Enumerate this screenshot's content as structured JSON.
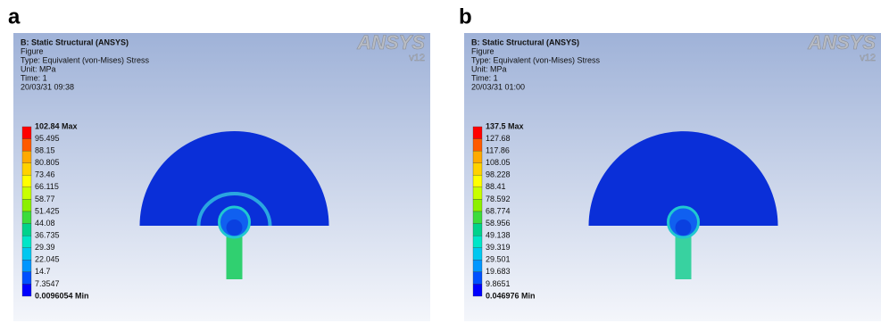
{
  "panels": [
    {
      "label": "a",
      "header": [
        "B: Static Structural (ANSYS)",
        "Figure",
        "Type: Equivalent (von-Mises) Stress",
        "Unit: MPa",
        "Time: 1",
        "20/03/31 09:38"
      ],
      "logo": "ANSYS",
      "version": "v12",
      "legend": [
        "102.84 Max",
        "95.495",
        "88.15",
        "80.805",
        "73.46",
        "66.115",
        "58.77",
        "51.425",
        "44.08",
        "36.735",
        "29.39",
        "22.045",
        "14.7",
        "7.3547",
        "0.0096054 Min"
      ]
    },
    {
      "label": "b",
      "header": [
        "B: Static Structural (ANSYS)",
        "Figure",
        "Type: Equivalent (von-Mises) Stress",
        "Unit: MPa",
        "Time: 1",
        "20/03/31 01:00"
      ],
      "logo": "ANSYS",
      "version": "v12",
      "legend": [
        "137.5 Max",
        "127.68",
        "117.86",
        "108.05",
        "98.228",
        "88.41",
        "78.592",
        "68.774",
        "58.956",
        "49.138",
        "39.319",
        "29.501",
        "19.683",
        "9.8651",
        "0.046976 Min"
      ]
    }
  ]
}
